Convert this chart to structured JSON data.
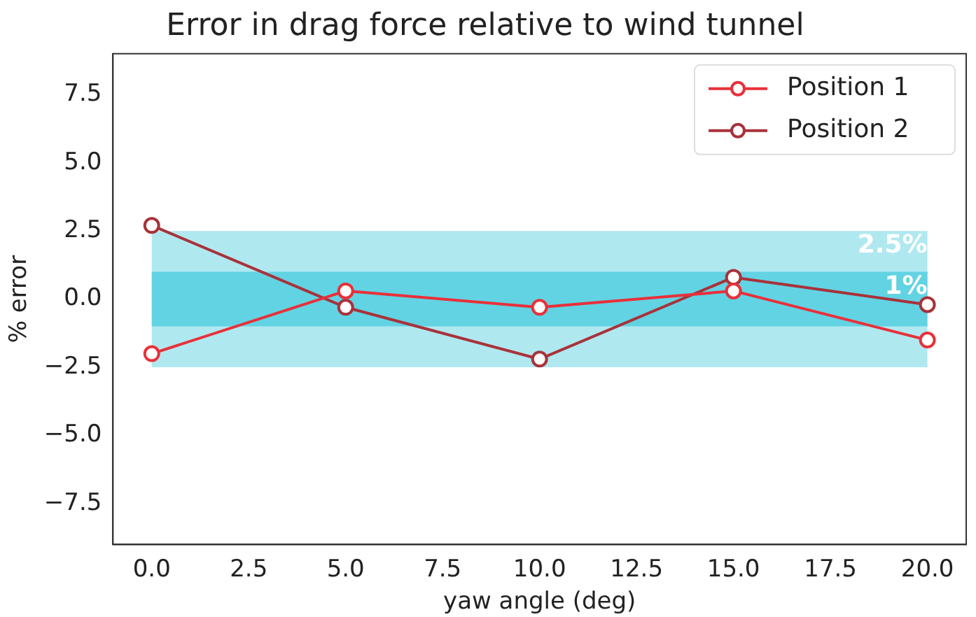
{
  "chart_data": {
    "type": "line",
    "title": "Error in drag force relative to wind tunnel",
    "xlabel": "yaw angle (deg)",
    "ylabel": "% error",
    "x": [
      0,
      5,
      10,
      15,
      20
    ],
    "series": [
      {
        "name": "Position 1",
        "color": "#e8303a",
        "values": [
          -2.0,
          0.3,
          -0.3,
          0.3,
          -1.5
        ]
      },
      {
        "name": "Position 2",
        "color": "#a8323a",
        "values": [
          2.7,
          -0.3,
          -2.2,
          0.8,
          -0.2
        ]
      }
    ],
    "xlim": [
      -1,
      21
    ],
    "xticks": [
      {
        "value": 0,
        "label": "0.0"
      },
      {
        "value": 2.5,
        "label": "2.5"
      },
      {
        "value": 5,
        "label": "5.0"
      },
      {
        "value": 7.5,
        "label": "7.5"
      },
      {
        "value": 10,
        "label": "10.0"
      },
      {
        "value": 12.5,
        "label": "12.5"
      },
      {
        "value": 15,
        "label": "15.0"
      },
      {
        "value": 17.5,
        "label": "17.5"
      },
      {
        "value": 20,
        "label": "20.0"
      }
    ],
    "ylim": [
      -9,
      9
    ],
    "yticks": [
      {
        "value": -7.5,
        "label": "−7.5"
      },
      {
        "value": -5,
        "label": "−5.0"
      },
      {
        "value": -2.5,
        "label": "−2.5"
      },
      {
        "value": 0,
        "label": "0.0"
      },
      {
        "value": 2.5,
        "label": "2.5"
      },
      {
        "value": 5,
        "label": "5.0"
      },
      {
        "value": 7.5,
        "label": "7.5"
      }
    ],
    "bands": [
      {
        "axis": "y",
        "from": -2.5,
        "to": 2.5,
        "label": "2.5%",
        "color": "#b0e8f0"
      },
      {
        "axis": "y",
        "from": -1,
        "to": 1,
        "label": "1%",
        "color": "#62d3e3"
      }
    ],
    "grid": false,
    "legend": "top right",
    "marker": "circle",
    "line_style": "solid"
  }
}
